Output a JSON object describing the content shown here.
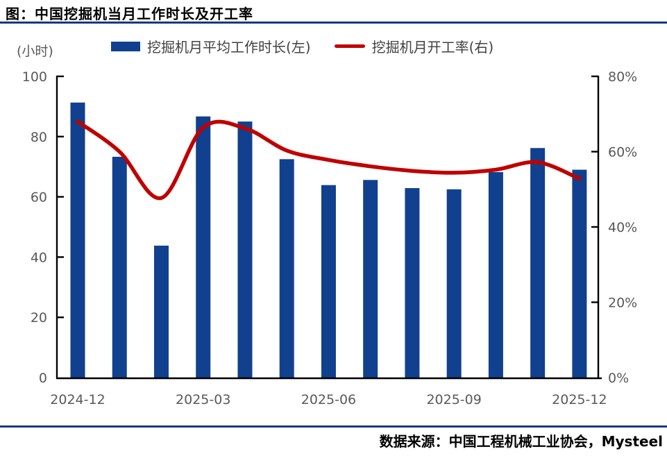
{
  "header": {
    "title": "图：中国挖掘机当月工作时长及开工率"
  },
  "legend": {
    "items": [
      {
        "label": "挖掘机月平均工作时长(左)",
        "swatch": "bar-swatch",
        "color": "#11408E"
      },
      {
        "label": "挖掘机月开工率(右)",
        "swatch": "line-swatch",
        "color": "#C00000"
      }
    ]
  },
  "footer": {
    "source": "数据来源：中国工程机械工业协会，Mysteel"
  },
  "colors": {
    "bar": "#11408E",
    "line": "#C00000",
    "rule": "#16397F",
    "axis_text": "#595959",
    "axis_line": "#000000"
  },
  "chart_data": {
    "type": "bar",
    "subtype": "bar+line combo, dual axis",
    "categories": [
      "2024-12",
      "2025-01",
      "2025-02",
      "2025-03",
      "2025-04",
      "2025-05",
      "2025-06",
      "2025-07",
      "2025-08",
      "2025-09",
      "2025-10",
      "2025-11",
      "2025-12"
    ],
    "series": [
      {
        "name": "挖掘机月平均工作时长(左)",
        "type": "bar",
        "axis": "left",
        "values": [
          91.3,
          73.3,
          43.8,
          86.7,
          85.0,
          72.5,
          63.9,
          65.6,
          62.9,
          62.5,
          68.2,
          76.2,
          69.0
        ]
      },
      {
        "name": "挖掘机月开工率(右)",
        "type": "line",
        "axis": "right",
        "values": [
          68.0,
          60.0,
          47.7,
          66.4,
          66.2,
          60.3,
          57.8,
          56.1,
          54.9,
          54.4,
          55.2,
          57.2,
          52.8
        ]
      }
    ],
    "title": "图：中国挖掘机当月工作时长及开工率",
    "left_axis": {
      "label": "(小时)",
      "range": [
        0,
        100
      ],
      "tick_labels": [
        "100",
        "80",
        "60",
        "40",
        "20",
        "0"
      ],
      "tick_values": [
        100,
        80,
        60,
        40,
        20,
        0
      ]
    },
    "right_axis": {
      "label": "",
      "range": [
        0,
        80
      ],
      "tick_labels": [
        "80%",
        "60%",
        "40%",
        "20%",
        "0%"
      ],
      "tick_values": [
        80,
        60,
        40,
        20,
        0
      ]
    },
    "x_axis": {
      "shown_tick_labels": [
        "2024-12",
        "2025-03",
        "2025-06",
        "2025-09",
        "2025-12"
      ],
      "shown_tick_indices": [
        0,
        3,
        6,
        9,
        12
      ]
    },
    "grid": false,
    "legend_position": "top"
  }
}
